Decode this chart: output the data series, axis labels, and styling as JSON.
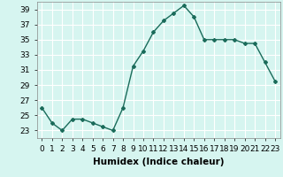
{
  "x": [
    0,
    1,
    2,
    3,
    4,
    5,
    6,
    7,
    8,
    9,
    10,
    11,
    12,
    13,
    14,
    15,
    16,
    17,
    18,
    19,
    20,
    21,
    22,
    23
  ],
  "y": [
    26,
    24,
    23,
    24.5,
    24.5,
    24,
    23.5,
    23,
    26,
    31.5,
    33.5,
    36,
    37.5,
    38.5,
    39.5,
    38,
    35,
    35,
    35,
    35,
    34.5,
    34.5,
    32,
    29.5
  ],
  "line_color": "#1a6b5a",
  "marker": "D",
  "marker_size": 2.0,
  "bg_color": "#d6f5f0",
  "grid_color": "#ffffff",
  "xlabel": "Humidex (Indice chaleur)",
  "xlim": [
    -0.5,
    23.5
  ],
  "ylim": [
    22,
    40
  ],
  "yticks": [
    23,
    25,
    27,
    29,
    31,
    33,
    35,
    37,
    39
  ],
  "xtick_labels": [
    "0",
    "1",
    "2",
    "3",
    "4",
    "5",
    "6",
    "7",
    "8",
    "9",
    "10",
    "11",
    "12",
    "13",
    "14",
    "15",
    "16",
    "17",
    "18",
    "19",
    "20",
    "21",
    "22",
    "23"
  ],
  "xlabel_fontsize": 7.5,
  "tick_fontsize": 6.5,
  "line_width": 1.0
}
